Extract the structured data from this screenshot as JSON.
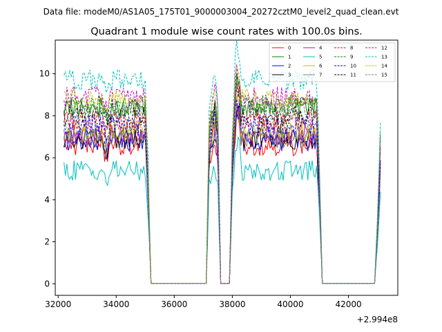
{
  "header": {
    "data_file": "Data file: modeM0/AS1A05_175T01_9000003004_20272cztM0_level2_quad_clean.evt"
  },
  "chart_data": {
    "type": "line",
    "title": "Quadrant 1 module wise count rates with 100.0s bins.",
    "xlabel": "",
    "ylabel": "",
    "x_offset_label": "+2.994e8",
    "xlim": [
      31900,
      43700
    ],
    "ylim": [
      -0.55,
      11.6
    ],
    "x_ticks": [
      32000,
      34000,
      36000,
      38000,
      40000,
      42000
    ],
    "x_tick_labels": [
      "32000",
      "34000",
      "36000",
      "38000",
      "40000",
      "42000"
    ],
    "y_ticks": [
      0,
      2,
      4,
      6,
      8,
      10
    ],
    "y_tick_labels": [
      "0",
      "2",
      "4",
      "6",
      "8",
      "10"
    ],
    "grid": false,
    "legend_position": "top-right",
    "envelope": {
      "x": [
        32200,
        35000,
        35100,
        35200,
        37100,
        37200,
        37400,
        37500,
        37600,
        37900,
        38000,
        38100,
        38200,
        40900,
        41000,
        41100,
        42900,
        43000,
        43100
      ],
      "factor": [
        1,
        1,
        0.6,
        0,
        0,
        0.85,
        1.05,
        0.9,
        0,
        0,
        0.75,
        1.08,
        1,
        1,
        0.6,
        0,
        0,
        0.35,
        0.8
      ]
    },
    "series": [
      {
        "name": "0",
        "color": "#ff0000",
        "dash": "solid",
        "level": 6.6
      },
      {
        "name": "1",
        "color": "#008000",
        "dash": "solid",
        "level": 8.4
      },
      {
        "name": "2",
        "color": "#0000ff",
        "dash": "solid",
        "level": 6.8
      },
      {
        "name": "3",
        "color": "#000000",
        "dash": "solid",
        "level": 6.9
      },
      {
        "name": "4",
        "color": "#bf00bf",
        "dash": "solid",
        "level": 7.1
      },
      {
        "name": "5",
        "color": "#00bfbf",
        "dash": "solid",
        "level": 5.4
      },
      {
        "name": "6",
        "color": "#bfbf00",
        "dash": "solid",
        "level": 7.3
      },
      {
        "name": "7",
        "color": "#808080",
        "dash": "solid",
        "level": 6.9
      },
      {
        "name": "8",
        "color": "#ff0000",
        "dash": "dashed",
        "level": 7.8
      },
      {
        "name": "9",
        "color": "#008000",
        "dash": "dashed",
        "level": 8.5
      },
      {
        "name": "10",
        "color": "#0000ff",
        "dash": "dashed",
        "level": 7.5
      },
      {
        "name": "11",
        "color": "#000000",
        "dash": "dashed",
        "level": 8.0
      },
      {
        "name": "12",
        "color": "#bf00bf",
        "dash": "dashed",
        "level": 8.9
      },
      {
        "name": "13",
        "color": "#00bfbf",
        "dash": "dashed",
        "level": 9.7
      },
      {
        "name": "14",
        "color": "#bfbf00",
        "dash": "dashed",
        "level": 8.8
      },
      {
        "name": "15",
        "color": "#808080",
        "dash": "dashed",
        "level": 8.2
      }
    ]
  }
}
